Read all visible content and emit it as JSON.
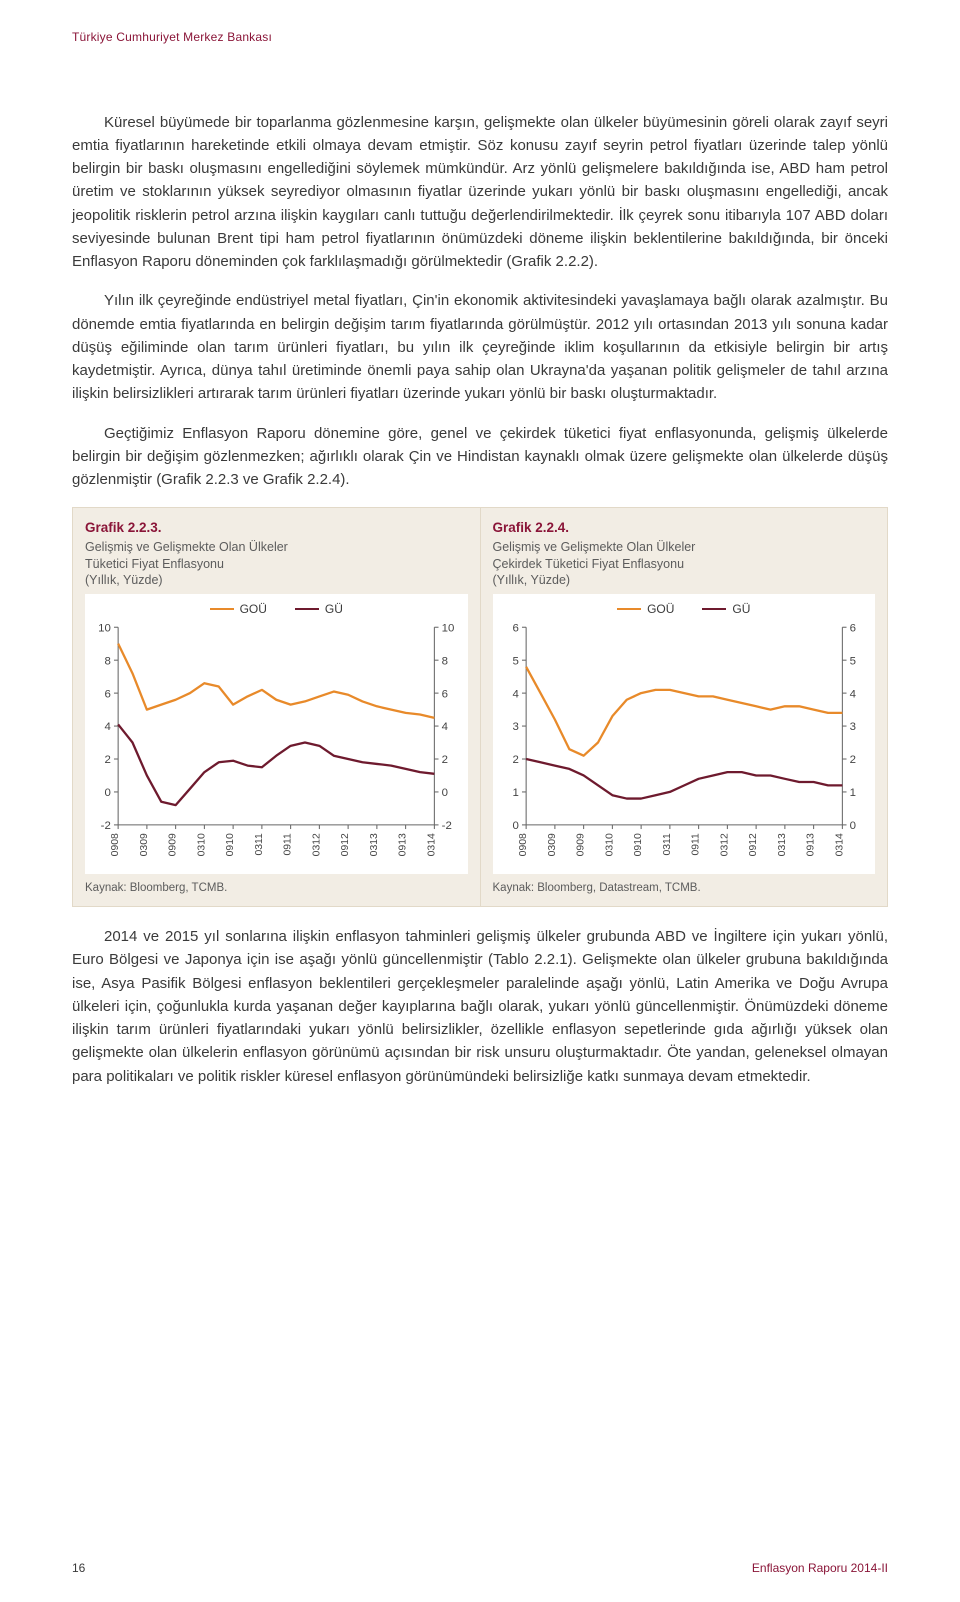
{
  "header": "Türkiye Cumhuriyet Merkez Bankası",
  "paragraphs": {
    "p1": "Küresel büyümede bir toparlanma gözlenmesine karşın, gelişmekte olan ülkeler büyümesinin göreli olarak zayıf seyri emtia fiyatlarının hareketinde etkili olmaya devam etmiştir. Söz konusu zayıf seyrin petrol fiyatları üzerinde talep yönlü belirgin bir baskı oluşmasını engellediğini söylemek mümkündür. Arz yönlü gelişmelere bakıldığında ise, ABD ham petrol üretim ve stoklarının yüksek seyrediyor olmasının fiyatlar üzerinde yukarı yönlü bir baskı oluşmasını engellediği, ancak jeopolitik risklerin petrol arzına ilişkin kaygıları canlı tuttuğu değerlendirilmektedir. İlk çeyrek sonu itibarıyla 107 ABD doları seviyesinde bulunan Brent tipi ham petrol fiyatlarının önümüzdeki döneme ilişkin beklentilerine bakıldığında, bir önceki Enflasyon Raporu döneminden çok farklılaşmadığı görülmektedir (Grafik 2.2.2).",
    "p2": "Yılın ilk çeyreğinde endüstriyel metal fiyatları, Çin'in ekonomik aktivitesindeki yavaşlamaya bağlı olarak azalmıştır. Bu dönemde emtia fiyatlarında en belirgin değişim tarım fiyatlarında görülmüştür. 2012 yılı ortasından 2013 yılı sonuna kadar düşüş eğiliminde olan tarım ürünleri fiyatları, bu yılın ilk çeyreğinde iklim koşullarının da etkisiyle belirgin bir artış kaydetmiştir. Ayrıca, dünya tahıl üretiminde önemli paya sahip olan Ukrayna'da yaşanan politik gelişmeler de tahıl arzına ilişkin belirsizlikleri artırarak tarım ürünleri fiyatları üzerinde yukarı yönlü bir baskı oluşturmaktadır.",
    "p3": "Geçtiğimiz Enflasyon Raporu dönemine göre, genel ve çekirdek tüketici fiyat enflasyonunda, gelişmiş ülkelerde belirgin bir değişim gözlenmezken; ağırlıklı olarak Çin ve Hindistan kaynaklı olmak üzere gelişmekte olan ülkelerde düşüş gözlenmiştir (Grafik 2.2.3 ve Grafik 2.2.4).",
    "p4": "2014 ve 2015 yıl sonlarına ilişkin enflasyon tahminleri gelişmiş ülkeler grubunda ABD ve İngiltere için yukarı yönlü, Euro Bölgesi ve Japonya için ise aşağı yönlü güncellenmiştir (Tablo 2.2.1). Gelişmekte olan ülkeler grubuna bakıldığında ise, Asya Pasifik Bölgesi enflasyon beklentileri gerçekleşmeler paralelinde aşağı yönlü, Latin Amerika ve Doğu Avrupa ülkeleri için, çoğunlukla kurda yaşanan değer kayıplarına bağlı olarak, yukarı yönlü güncellenmiştir. Önümüzdeki döneme ilişkin tarım ürünleri fiyatlarındaki yukarı yönlü belirsizlikler, özellikle enflasyon sepetlerinde gıda ağırlığı yüksek olan gelişmekte olan ülkelerin enflasyon görünümü açısından bir risk unsuru oluşturmaktadır. Öte yandan, geleneksel olmayan para politikaları ve politik riskler küresel enflasyon görünümündeki belirsizliğe katkı sunmaya devam etmektedir."
  },
  "chart_left": {
    "title": "Grafik 2.2.3.",
    "subtitle1": "Gelişmiş ve Gelişmekte Olan Ülkeler",
    "subtitle2": "Tüketici Fiyat Enflasyonu",
    "subtitle3": "(Yıllık, Yüzde)",
    "legend": {
      "s1": "GOÜ",
      "s2": "GÜ"
    },
    "source": "Kaynak: Bloomberg, TCMB.",
    "type": "line",
    "colors": {
      "s1": "#e88a2a",
      "s2": "#6e1a2e",
      "axis": "#666666",
      "bg": "#ffffff",
      "text": "#444444"
    },
    "line_width": 2.2,
    "ylim": [
      -2,
      10
    ],
    "yticks": [
      -2,
      0,
      2,
      4,
      6,
      8,
      10
    ],
    "x_labels": [
      "0908",
      "0309",
      "0909",
      "0310",
      "0910",
      "0311",
      "0911",
      "0312",
      "0912",
      "0313",
      "0913",
      "0314"
    ],
    "series": {
      "s1": [
        9.0,
        7.2,
        5.0,
        5.3,
        5.6,
        6.0,
        6.6,
        6.4,
        5.3,
        5.8,
        6.2,
        5.6,
        5.3,
        5.5,
        5.8,
        6.1,
        5.9,
        5.5,
        5.2,
        5.0,
        4.8,
        4.7,
        4.5
      ],
      "s2": [
        4.1,
        3.0,
        1.0,
        -0.6,
        -0.8,
        0.2,
        1.2,
        1.8,
        1.9,
        1.6,
        1.5,
        2.2,
        2.8,
        3.0,
        2.8,
        2.2,
        2.0,
        1.8,
        1.7,
        1.6,
        1.4,
        1.2,
        1.1
      ]
    }
  },
  "chart_right": {
    "title": "Grafik 2.2.4.",
    "subtitle1": "Gelişmiş ve Gelişmekte Olan Ülkeler",
    "subtitle2": "Çekirdek Tüketici Fiyat Enflasyonu",
    "subtitle3": "(Yıllık, Yüzde)",
    "legend": {
      "s1": "GOÜ",
      "s2": "GÜ"
    },
    "source": "Kaynak: Bloomberg, Datastream, TCMB.",
    "type": "line",
    "colors": {
      "s1": "#e88a2a",
      "s2": "#6e1a2e",
      "axis": "#666666",
      "bg": "#ffffff",
      "text": "#444444"
    },
    "line_width": 2.2,
    "ylim": [
      0,
      6
    ],
    "yticks": [
      0,
      1,
      2,
      3,
      4,
      5,
      6
    ],
    "x_labels": [
      "0908",
      "0309",
      "0909",
      "0310",
      "0910",
      "0311",
      "0911",
      "0312",
      "0912",
      "0313",
      "0913",
      "0314"
    ],
    "series": {
      "s1": [
        4.8,
        4.0,
        3.2,
        2.3,
        2.1,
        2.5,
        3.3,
        3.8,
        4.0,
        4.1,
        4.1,
        4.0,
        3.9,
        3.9,
        3.8,
        3.7,
        3.6,
        3.5,
        3.6,
        3.6,
        3.5,
        3.4,
        3.4
      ],
      "s2": [
        2.0,
        1.9,
        1.8,
        1.7,
        1.5,
        1.2,
        0.9,
        0.8,
        0.8,
        0.9,
        1.0,
        1.2,
        1.4,
        1.5,
        1.6,
        1.6,
        1.5,
        1.5,
        1.4,
        1.3,
        1.3,
        1.2,
        1.2
      ]
    }
  },
  "footer": {
    "page": "16",
    "doc": "Enflasyon Raporu 2014-II"
  }
}
